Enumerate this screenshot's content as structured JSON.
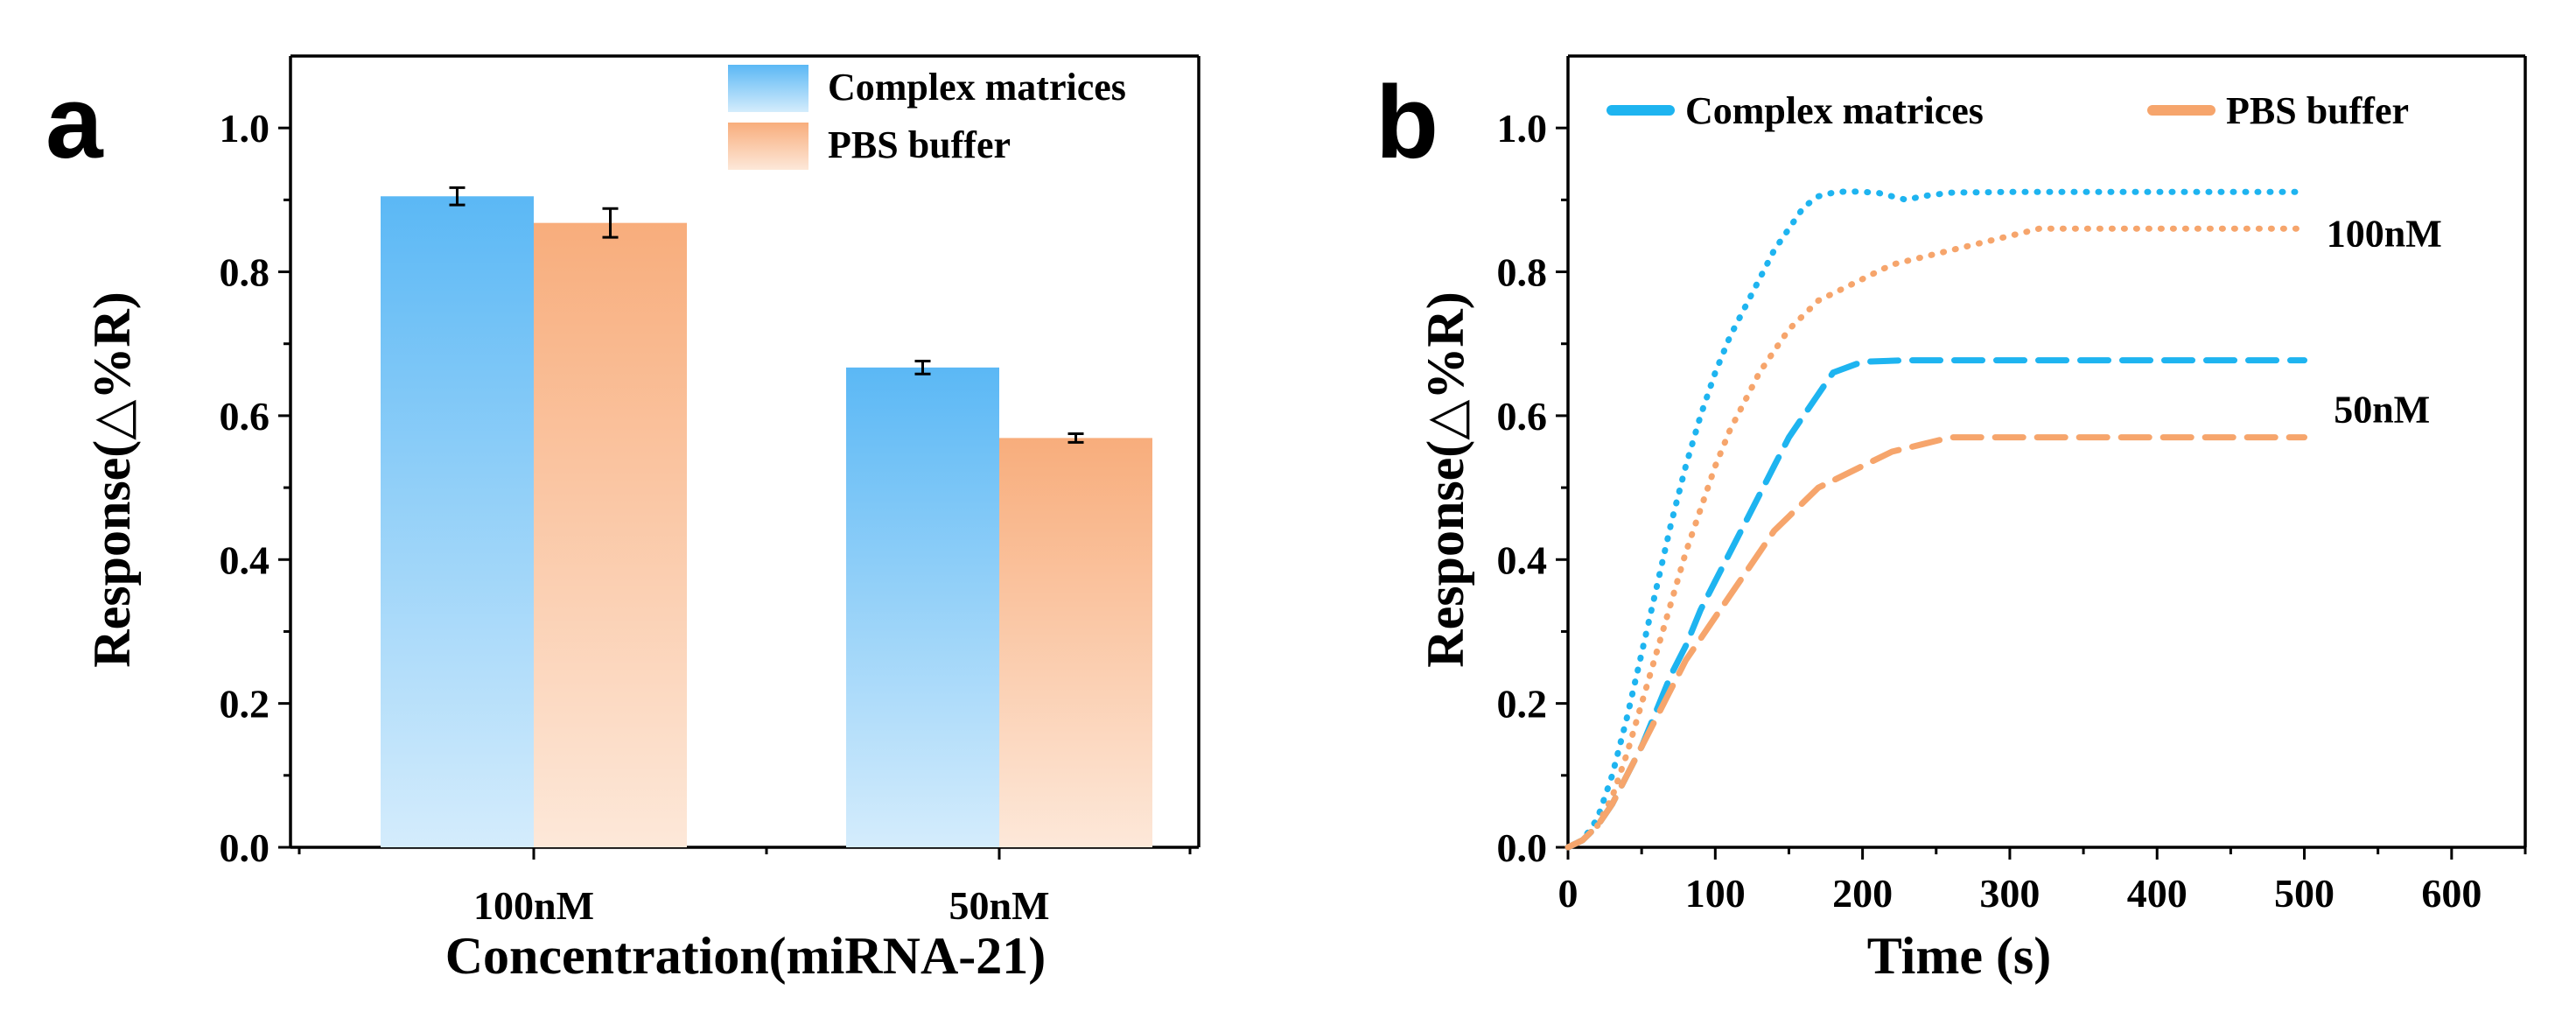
{
  "chart_data": [
    {
      "panel": "a",
      "type": "bar",
      "categories": [
        "100nM",
        "50nM"
      ],
      "xlabel": "Concentration(miRNA-21)",
      "ylabel": "Response(△%R)",
      "ylim": [
        0,
        1.1
      ],
      "yticks": [
        "0.0",
        "0.2",
        "0.4",
        "0.6",
        "0.8",
        "1.0"
      ],
      "series": [
        {
          "name": "Complex matrices",
          "values": [
            0.905,
            0.667
          ],
          "errors": [
            0.012,
            0.009
          ],
          "color_top": "#5bb8f5",
          "color_bottom": "#d4ecfc"
        },
        {
          "name": "PBS buffer",
          "values": [
            0.868,
            0.569
          ],
          "errors": [
            0.02,
            0.006
          ],
          "color_top": "#f8ad7c",
          "color_bottom": "#fde8d9"
        }
      ],
      "legend_position": "top-right"
    },
    {
      "panel": "b",
      "type": "line",
      "xlabel": "Time (s)",
      "ylabel": "Response(△%R)",
      "xlim": [
        0,
        650
      ],
      "ylim": [
        0,
        1.1
      ],
      "xticks": [
        "0",
        "100",
        "200",
        "300",
        "400",
        "500",
        "600"
      ],
      "yticks": [
        "0.0",
        "0.2",
        "0.4",
        "0.6",
        "0.8",
        "1.0"
      ],
      "legend": [
        {
          "name": "Complex matrices",
          "color": "#1eb4f0",
          "style": "dash"
        },
        {
          "name": "PBS buffer",
          "color": "#f6a56c",
          "style": "dash"
        }
      ],
      "annotations": [
        {
          "text": "100nM",
          "x": 515,
          "y": 0.855
        },
        {
          "text": "50nM",
          "x": 520,
          "y": 0.61
        }
      ],
      "series": [
        {
          "name": "Complex matrices 100nM",
          "color": "#1eb4f0",
          "style": "dot",
          "x": [
            0,
            10,
            20,
            30,
            40,
            50,
            60,
            70,
            80,
            90,
            100,
            110,
            120,
            130,
            140,
            150,
            160,
            170,
            180,
            190,
            200,
            210,
            220,
            230,
            240,
            260,
            300,
            350,
            400,
            450,
            500
          ],
          "y": [
            0,
            0.01,
            0.04,
            0.1,
            0.18,
            0.27,
            0.36,
            0.45,
            0.53,
            0.6,
            0.66,
            0.71,
            0.75,
            0.79,
            0.83,
            0.86,
            0.89,
            0.905,
            0.91,
            0.912,
            0.911,
            0.91,
            0.905,
            0.9,
            0.905,
            0.91,
            0.911,
            0.911,
            0.911,
            0.911,
            0.911
          ]
        },
        {
          "name": "PBS buffer 100nM",
          "color": "#f6a56c",
          "style": "dot",
          "x": [
            0,
            10,
            20,
            30,
            40,
            50,
            60,
            70,
            80,
            90,
            100,
            110,
            120,
            130,
            140,
            150,
            160,
            170,
            180,
            190,
            200,
            210,
            220,
            240,
            260,
            280,
            300,
            320,
            340,
            400,
            450,
            500
          ],
          "y": [
            0,
            0.01,
            0.03,
            0.07,
            0.13,
            0.2,
            0.27,
            0.34,
            0.41,
            0.47,
            0.53,
            0.58,
            0.62,
            0.66,
            0.69,
            0.72,
            0.74,
            0.76,
            0.77,
            0.78,
            0.79,
            0.8,
            0.81,
            0.82,
            0.83,
            0.84,
            0.85,
            0.86,
            0.86,
            0.86,
            0.86,
            0.86
          ]
        },
        {
          "name": "Complex matrices 50nM",
          "color": "#1eb4f0",
          "style": "dash",
          "x": [
            0,
            10,
            20,
            30,
            40,
            50,
            60,
            70,
            80,
            90,
            100,
            110,
            120,
            130,
            140,
            150,
            160,
            170,
            180,
            200,
            230,
            260,
            300,
            350,
            400,
            450,
            500
          ],
          "y": [
            0,
            0.01,
            0.03,
            0.06,
            0.1,
            0.14,
            0.19,
            0.24,
            0.28,
            0.33,
            0.37,
            0.41,
            0.45,
            0.49,
            0.53,
            0.57,
            0.6,
            0.63,
            0.66,
            0.675,
            0.677,
            0.677,
            0.677,
            0.677,
            0.677,
            0.677,
            0.677
          ]
        },
        {
          "name": "PBS buffer 50nM",
          "color": "#f6a56c",
          "style": "dash",
          "x": [
            0,
            10,
            20,
            30,
            40,
            50,
            60,
            70,
            80,
            90,
            100,
            110,
            120,
            130,
            140,
            150,
            160,
            170,
            180,
            200,
            220,
            240,
            260,
            300,
            350,
            400,
            450,
            500
          ],
          "y": [
            0,
            0.01,
            0.03,
            0.06,
            0.1,
            0.14,
            0.18,
            0.22,
            0.26,
            0.29,
            0.32,
            0.35,
            0.38,
            0.41,
            0.44,
            0.46,
            0.48,
            0.5,
            0.51,
            0.53,
            0.55,
            0.56,
            0.57,
            0.57,
            0.57,
            0.57,
            0.57,
            0.57
          ]
        }
      ]
    }
  ]
}
